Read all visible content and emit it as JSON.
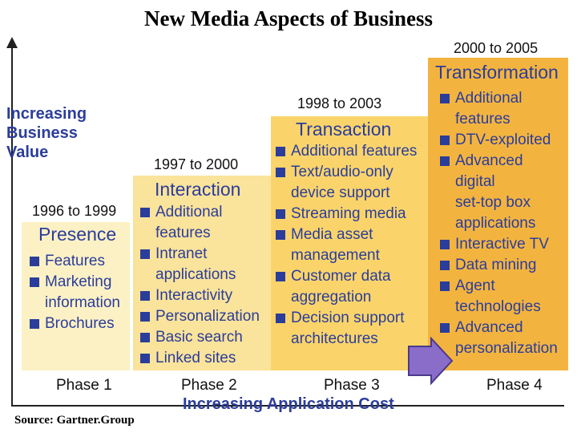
{
  "title": "New Media Aspects of Business",
  "y_axis_label": [
    "Increasing",
    "Business",
    "Value"
  ],
  "x_axis_label": "Increasing Application Cost",
  "source": "Source: Gartner.Group",
  "phases": [
    {
      "phase": "Phase 1",
      "years": "1996 to 1999",
      "heading": "Presence",
      "items": [
        [
          "Features"
        ],
        [
          "Marketing",
          "information"
        ],
        [
          "Brochures"
        ]
      ]
    },
    {
      "phase": "Phase 2",
      "years": "1997 to 2000",
      "heading": "Interaction",
      "items": [
        [
          "Additional",
          "features"
        ],
        [
          "Intranet",
          "applications"
        ],
        [
          "Interactivity"
        ],
        [
          "Personalization"
        ],
        [
          "Basic search"
        ],
        [
          "Linked sites"
        ]
      ]
    },
    {
      "phase": "Phase 3",
      "years": "1998 to 2003",
      "heading": "Transaction",
      "items": [
        [
          "Additional features"
        ],
        [
          "Text/audio-only",
          "device support"
        ],
        [
          "Streaming media"
        ],
        [
          "Media asset",
          "management"
        ],
        [
          "Customer data",
          "aggregation"
        ],
        [
          "Decision support",
          "architectures"
        ]
      ]
    },
    {
      "phase": "Phase 4",
      "years": "2000 to 2005",
      "heading": "Transformation",
      "items": [
        [
          "Additional",
          "features"
        ],
        [
          "DTV-exploited"
        ],
        [
          "Advanced",
          "digital",
          "set-top box",
          "applications"
        ],
        [
          "Interactive TV"
        ],
        [
          "Data mining"
        ],
        [
          "Agent",
          "technologies"
        ],
        [
          "Advanced",
          "personalization"
        ]
      ]
    }
  ],
  "colors": {
    "text_blue": "#2b3d9b",
    "phase1": "#fcf1c4",
    "phase2": "#fae39a",
    "phase3": "#fad46a",
    "phase4": "#f3b43f",
    "arrow": "#8a6cc9"
  }
}
